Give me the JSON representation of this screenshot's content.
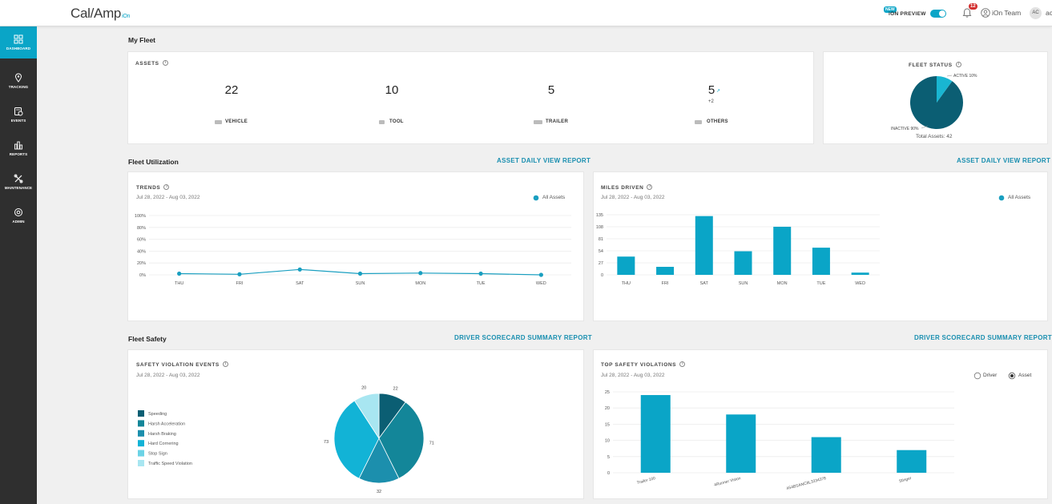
{
  "topbar": {
    "logo": "Cal/Amp",
    "logo_suffix": "iOn",
    "new_badge": "NEW",
    "preview_label": "iON PREVIEW",
    "notifications": "12",
    "team": "iOn Team",
    "avatar_initials": "AC",
    "user_clip": "ac"
  },
  "sidebar": {
    "items": [
      {
        "label": "DASHBOARD"
      },
      {
        "label": "TRACKING"
      },
      {
        "label": "EVENTS"
      },
      {
        "label": "REPORTS"
      },
      {
        "label": "MAINTENANCE"
      },
      {
        "label": "ADMIN"
      }
    ]
  },
  "fleet": {
    "title": "My Fleet",
    "assets_title": "ASSETS",
    "vehicle_count": "22",
    "vehicle_label": "VEHICLE",
    "tool_count": "10",
    "tool_label": "TOOL",
    "trailer_count": "5",
    "trailer_label": "TRAILER",
    "others_count": "5",
    "others_label": "OTHERS",
    "others_delta": "+2",
    "status_title": "FLEET STATUS",
    "active_label": "ACTIVE 10%",
    "inactive_label": "INACTIVE 90%",
    "total_assets": "Total Assets: 42",
    "active_pct": 10,
    "colors": {
      "active": "#19b6d2",
      "inactive": "#0b5e73"
    }
  },
  "utilization": {
    "title": "Fleet Utilization",
    "link_left": "ASSET DAILY VIEW REPORT",
    "link_right": "ASSET DAILY VIEW REPORT"
  },
  "trends": {
    "title": "TRENDS",
    "date_range": "Jul 28, 2022 - Aug 03, 2022",
    "legend": "All Assets"
  },
  "miles": {
    "title": "MILES DRIVEN",
    "date_range": "Jul 28, 2022 - Aug 03, 2022",
    "legend": "All Assets"
  },
  "safety": {
    "title": "Fleet Safety",
    "link_left": "DRIVER SCORECARD SUMMARY REPORT",
    "link_right": "DRIVER SCORECARD SUMMARY REPORT",
    "events_title": "SAFETY VIOLATION EVENTS",
    "events_date": "Jul 28, 2022 - Aug 03, 2022",
    "top_title": "TOP SAFETY VIOLATIONS",
    "top_date": "Jul 28, 2022 - Aug 03, 2022",
    "radio_driver": "Driver",
    "radio_asset": "Asset"
  },
  "chart_data": [
    {
      "type": "line",
      "title": "TRENDS",
      "categories": [
        "THU",
        "FRI",
        "SAT",
        "SUN",
        "MON",
        "TUE",
        "WED"
      ],
      "values": [
        2,
        1,
        9,
        2,
        3,
        2,
        0
      ],
      "yticks": [
        "0%",
        "20%",
        "40%",
        "60%",
        "80%",
        "100%"
      ],
      "ylim": [
        0,
        100
      ],
      "color": "#1a9fc0"
    },
    {
      "type": "bar",
      "title": "MILES DRIVEN",
      "categories": [
        "THU",
        "FRI",
        "SAT",
        "SUN",
        "MON",
        "TUE",
        "WED"
      ],
      "values": [
        41,
        18,
        132,
        53,
        108,
        61,
        5
      ],
      "yticks": [
        "0",
        "27",
        "54",
        "81",
        "108",
        "135"
      ],
      "ylim": [
        0,
        135
      ],
      "color": "#0aa5c7"
    },
    {
      "type": "pie",
      "title": "SAFETY VIOLATION EVENTS",
      "labels": [
        "Speeding",
        "Harsh Acceleration",
        "Harsh Braking",
        "Hard Cornering",
        "Stop Sign",
        "Traffic Speed Violation"
      ],
      "values": [
        22,
        71,
        32,
        73,
        0,
        20
      ],
      "value_labels": [
        "22",
        "71",
        "32",
        "73",
        "",
        "20"
      ],
      "colors": [
        "#0b5e73",
        "#138699",
        "#1c8fad",
        "#12b3d6",
        "#6cd3e6",
        "#a8e6f1"
      ]
    },
    {
      "type": "bar",
      "title": "TOP SAFETY VIOLATIONS",
      "categories": [
        "Trailer 100",
        "4Runner Vision",
        "4S4BSANC8L3334378",
        "Stinger"
      ],
      "values": [
        24,
        18,
        11,
        7
      ],
      "yticks": [
        "0",
        "5",
        "10",
        "15",
        "20",
        "25"
      ],
      "ylim": [
        0,
        25
      ],
      "color": "#0aa5c7"
    },
    {
      "type": "pie",
      "title": "FLEET STATUS",
      "labels": [
        "ACTIVE 10%",
        "INACTIVE 90%"
      ],
      "values": [
        10,
        90
      ],
      "colors": [
        "#19b6d2",
        "#0b5e73"
      ]
    }
  ]
}
